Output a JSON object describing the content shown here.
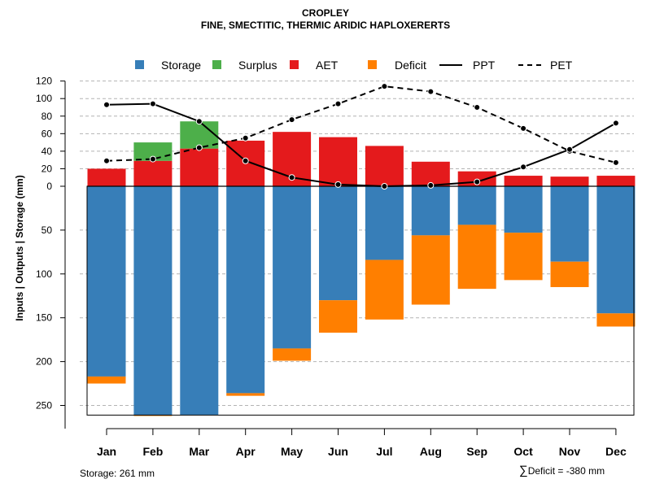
{
  "chart_data": {
    "type": "bar",
    "title": "CROPLEY",
    "subtitle": "FINE, SMECTITIC, THERMIC ARIDIC HAPLOXERERTS",
    "ylabel": "Inputs | Outputs | Storage     (mm)",
    "categories": [
      "Jan",
      "Feb",
      "Mar",
      "Apr",
      "May",
      "Jun",
      "Jul",
      "Aug",
      "Sep",
      "Oct",
      "Nov",
      "Dec"
    ],
    "upper_axis": {
      "ticks": [
        0,
        20,
        40,
        60,
        80,
        100,
        120
      ],
      "ylim": [
        0,
        120
      ]
    },
    "lower_axis": {
      "ticks": [
        50,
        100,
        150,
        200,
        250
      ],
      "ylim": [
        0,
        261
      ]
    },
    "series": [
      {
        "name": "Storage",
        "color": "#377EB8",
        "direction": "down",
        "values": [
          217,
          261,
          261,
          236,
          185,
          130,
          84,
          56,
          44,
          53,
          86,
          145
        ]
      },
      {
        "name": "Deficit",
        "color": "#FF7F00",
        "direction": "down",
        "values": [
          8,
          1,
          0,
          3,
          14,
          37,
          68,
          79,
          73,
          54,
          29,
          15
        ]
      },
      {
        "name": "AET",
        "color": "#E41A1C",
        "direction": "up",
        "values": [
          20,
          29,
          43,
          52,
          62,
          56,
          46,
          28,
          17,
          12,
          11,
          12
        ]
      },
      {
        "name": "Surplus",
        "color": "#4DAF4A",
        "direction": "up",
        "values": [
          0,
          21,
          31,
          0,
          0,
          0,
          0,
          0,
          0,
          0,
          0,
          0
        ]
      },
      {
        "name": "PPT",
        "color": "#000000",
        "style": "solid",
        "values": [
          93,
          94,
          74,
          29,
          10,
          2,
          0,
          1,
          5,
          22,
          42,
          72
        ]
      },
      {
        "name": "PET",
        "color": "#000000",
        "style": "dashed",
        "values": [
          29,
          31,
          44,
          55,
          76,
          94,
          114,
          108,
          90,
          66,
          40,
          27
        ]
      }
    ],
    "legend": [
      "Storage",
      "Surplus",
      "AET",
      "Deficit",
      "PPT",
      "PET"
    ],
    "legend_position": "top"
  },
  "footer": {
    "storage_note": "Storage: 261 mm",
    "deficit_note": "Deficit = -380 mm",
    "sigma": "∑"
  }
}
